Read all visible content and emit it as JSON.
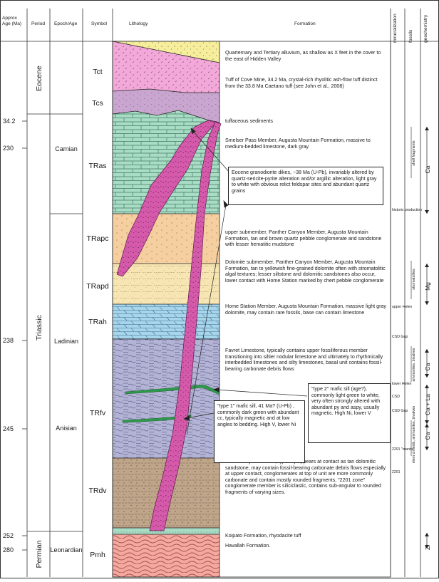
{
  "headers": {
    "age": [
      "Approx",
      "Age (Ma)"
    ],
    "period": "Period",
    "epoch": "Epoch/Age",
    "symbol": "Symbol",
    "lithology": "Lithology",
    "formation": "Formation",
    "mineralization": "mineralization",
    "fossils": "fossils",
    "geochemistry": "geochemistry"
  },
  "ages": [
    "34.2",
    "230",
    "238",
    "245",
    "252",
    "280"
  ],
  "periods": [
    "Eocene",
    "Triassic",
    "Permian"
  ],
  "epochs": [
    "Carnian",
    "Ladinian",
    "Anisian",
    "Leonardian"
  ],
  "symbols": [
    "Tct",
    "Tcs",
    "TRas",
    "TRapc",
    "TRapd",
    "TRah",
    "TRfv",
    "TRdv",
    "Pmh"
  ],
  "formations": {
    "tct": "Quarternary and Tertiary alluvium, as shallow as X feet in the cover to the east of Hidden Valley",
    "tcs_tuff": "Tuff of Cove Mine, 34.2 Ma, crystal-rich rhyolitic ash-flow tuff distinct from the 33.8 Ma Caetano tuff (see John et al., 2008)",
    "tcs_sed": "tuffaceous sediments",
    "tras": "Smelser Pass Member, Augusta Mountain Formation, massive to medium-bedded limestone, dark gray",
    "trapc": "upper submember, Panther Canyon Member, Augusta Mountain Formation, tan and brown quartz pebble conglomerate and sandstone with lesser hematitic mudstone",
    "trapd": "Dolomite submember, Panther Canyon Member, Augusta Mountain Formation, tan to yellowish fine-grained dolomite often with stromatolitic algal textures; lesser siltstone and dolomitic sandstones also occur, lower contact with Home Station marked by chert pebble conglomerate",
    "trah": "Home Station Member, Augusta Mountain Formation, massive light gray dolomite, may contain rare fossils, base can contain limestone",
    "trfv": "Favret Limestone, typically contains upper fossiliferous member transitioning into siltier nodular limestone and ultimately to rhythmically interbedded limestones and silty limestones, basal unit contains fossil-bearing carbonate debris flows",
    "trdv": "Dixie Valley Formation, typically appears at contact as tan dolomitic sandstone, may contain fossil-bearing carbonate debris flows especially at upper contact, conglomerates at top of unit are more commonly carbonate and contain mostly rounded fragments, \"2201 zone\" conglomerate member is siliciclastic, contains sub-angular to rounded fragments of varying sizes.",
    "koipato": "Koipato Formation, rhyodacite tuff",
    "pmh": "Havallah Formation."
  },
  "callouts": {
    "dikes": "Eocene granodiorite dikes, ~38 Ma (U-Pb), invariably altered by quartz-sericite-pyrite alteration and/or argillic alteration, light gray to white with obvious relict feldspar sites and abundant quartz grains",
    "sill1": "\"type 1\" mafic sill, 41  Ma? (U-Pb) , commonly dark green with abundant cc, typically magnetic and at low angles to bedding. High V, lower Ni",
    "sill2": "\"type 2\" mafic sill (age?), commonly light green to white, very often strongly altered with abundant py and aspy, usually magnetic. High Ni, lower V"
  },
  "mineralization": [
    "historic production",
    "upper Helen",
    "CSD Gap",
    "lower Helen",
    "CSD",
    "CSD Gap",
    "2201 \"manto\"",
    "2201"
  ],
  "fossils": [
    "shell fragments",
    "stromatolites",
    "ammonites, bivalves",
    "stem crinoids, ammonites, bivalves"
  ],
  "geochemistry": [
    "Ca",
    "Mg",
    "Ca",
    "Ca + La",
    "Ca",
    "Zr"
  ],
  "colors": {
    "alluvium": "#f6ee9a",
    "tuff": "#f2a9d9",
    "tuff_sed": "#c9a6cf",
    "limestone": "#a9dcc5",
    "conglomerate": "#f6cfa0",
    "dolomite": "#f7e6b4",
    "home_station": "#a6d5ec",
    "favret": "#b3b3d6",
    "dixie_valley": "#bfa58a",
    "koipato": "#a9dcc5",
    "havallah": "#f4a9a0",
    "dike": "#d65aab",
    "sill": "#2e9a4a"
  }
}
